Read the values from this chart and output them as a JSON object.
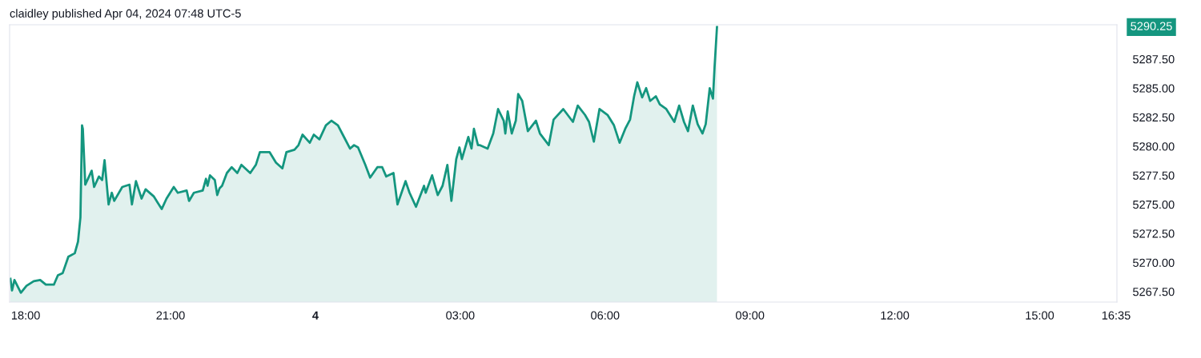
{
  "chart_data": {
    "type": "area",
    "title": "claidley published Apr 04, 2024 07:48 UTC-5",
    "x": [
      "2024-04-03T17:41",
      "2024-04-03T17:43",
      "2024-04-03T17:46",
      "2024-04-03T17:54",
      "2024-04-03T18:01",
      "2024-04-03T18:10",
      "2024-04-03T18:18",
      "2024-04-03T18:25",
      "2024-04-03T18:35",
      "2024-04-03T18:40",
      "2024-04-03T18:46",
      "2024-04-03T18:53",
      "2024-04-03T19:01",
      "2024-04-03T19:05",
      "2024-04-03T19:08",
      "2024-04-03T19:10",
      "2024-04-03T19:11",
      "2024-04-03T19:14",
      "2024-04-03T19:22",
      "2024-04-03T19:25",
      "2024-04-03T19:31",
      "2024-04-03T19:35",
      "2024-04-03T19:38",
      "2024-04-03T19:43",
      "2024-04-03T19:47",
      "2024-04-03T19:50",
      "2024-04-03T20:00",
      "2024-04-03T20:09",
      "2024-04-03T20:12",
      "2024-04-03T20:17",
      "2024-04-03T20:24",
      "2024-04-03T20:29",
      "2024-04-03T20:39",
      "2024-04-03T20:49",
      "2024-04-03T20:55",
      "2024-04-03T21:04",
      "2024-04-03T21:09",
      "2024-04-03T21:20",
      "2024-04-03T21:23",
      "2024-04-03T21:29",
      "2024-04-03T21:40",
      "2024-04-03T21:44",
      "2024-04-03T21:46",
      "2024-04-03T21:49",
      "2024-04-03T21:55",
      "2024-04-03T21:58",
      "2024-04-03T22:01",
      "2024-04-03T22:04",
      "2024-04-03T22:10",
      "2024-04-03T22:16",
      "2024-04-03T22:23",
      "2024-04-03T22:28",
      "2024-04-03T22:39",
      "2024-04-03T22:46",
      "2024-04-03T22:51",
      "2024-04-03T23:03",
      "2024-04-03T23:11",
      "2024-04-03T23:19",
      "2024-04-03T23:24",
      "2024-04-03T23:34",
      "2024-04-03T23:39",
      "2024-04-03T23:44",
      "2024-04-03T23:53",
      "2024-04-03T23:58",
      "2024-04-04T00:05",
      "2024-04-04T00:13",
      "2024-04-04T00:20",
      "2024-04-04T00:28",
      "2024-04-04T00:34",
      "2024-04-04T00:43",
      "2024-04-04T00:48",
      "2024-04-04T00:53",
      "2024-04-04T01:02",
      "2024-04-04T01:08",
      "2024-04-04T01:17",
      "2024-04-04T01:23",
      "2024-04-04T01:28",
      "2024-04-04T01:37",
      "2024-04-04T01:42",
      "2024-04-04T01:47",
      "2024-04-04T01:52",
      "2024-04-04T01:57",
      "2024-04-04T02:05",
      "2024-04-04T02:15",
      "2024-04-04T02:17",
      "2024-04-04T02:25",
      "2024-04-04T02:32",
      "2024-04-04T02:38",
      "2024-04-04T02:44",
      "2024-04-04T02:49",
      "2024-04-04T02:55",
      "2024-04-04T02:59",
      "2024-04-04T03:02",
      "2024-04-04T03:10",
      "2024-04-04T03:14",
      "2024-04-04T03:17",
      "2024-04-04T03:22",
      "2024-04-04T03:24",
      "2024-04-04T03:34",
      "2024-04-04T03:41",
      "2024-04-04T03:47",
      "2024-04-04T03:54",
      "2024-04-04T03:56",
      "2024-04-04T03:59",
      "2024-04-04T04:04",
      "2024-04-04T04:09",
      "2024-04-04T04:12",
      "2024-04-04T04:17",
      "2024-04-04T04:24",
      "2024-04-04T04:34",
      "2024-04-04T04:39",
      "2024-04-04T04:50",
      "2024-04-04T04:56",
      "2024-04-04T05:08",
      "2024-04-04T05:20",
      "2024-04-04T05:26",
      "2024-04-04T05:35",
      "2024-04-04T05:40",
      "2024-04-04T05:46",
      "2024-04-04T05:53",
      "2024-04-04T06:03",
      "2024-04-04T06:11",
      "2024-04-04T06:18",
      "2024-04-04T06:25",
      "2024-04-04T06:31",
      "2024-04-04T06:36",
      "2024-04-04T06:40",
      "2024-04-04T06:46",
      "2024-04-04T06:51",
      "2024-04-04T06:56",
      "2024-04-04T07:03",
      "2024-04-04T07:08",
      "2024-04-04T07:16",
      "2024-04-04T07:26",
      "2024-04-04T07:32",
      "2024-04-04T07:38",
      "2024-04-04T07:43",
      "2024-04-04T07:49",
      "2024-04-04T07:55",
      "2024-04-04T08:01",
      "2024-04-04T08:05",
      "2024-04-04T08:10",
      "2024-04-04T08:14",
      "2024-04-04T08:16",
      "2024-04-04T08:19"
    ],
    "series": [
      {
        "color": "#14967f",
        "values": [
          5268.6,
          5267.6,
          5268.5,
          5267.4,
          5268.0,
          5268.4,
          5268.5,
          5268.1,
          5268.1,
          5268.9,
          5269.1,
          5270.5,
          5270.8,
          5271.8,
          5273.9,
          5281.8,
          5281.5,
          5276.7,
          5277.9,
          5276.5,
          5277.4,
          5277.1,
          5278.8,
          5275.0,
          5276.0,
          5275.3,
          5276.5,
          5276.7,
          5275.0,
          5277.0,
          5275.5,
          5276.3,
          5275.7,
          5274.6,
          5275.5,
          5276.5,
          5276.0,
          5276.2,
          5275.3,
          5276.0,
          5276.2,
          5277.2,
          5276.6,
          5277.5,
          5277.1,
          5275.8,
          5276.4,
          5276.6,
          5277.7,
          5278.2,
          5277.7,
          5278.4,
          5277.7,
          5278.4,
          5279.5,
          5279.5,
          5278.6,
          5278.1,
          5279.5,
          5279.7,
          5280.1,
          5281.0,
          5280.3,
          5281.0,
          5280.6,
          5281.8,
          5282.2,
          5281.8,
          5281.0,
          5279.8,
          5280.1,
          5279.9,
          5278.4,
          5277.3,
          5278.2,
          5278.2,
          5277.4,
          5277.7,
          5275.0,
          5276.0,
          5277.0,
          5276.0,
          5274.8,
          5276.6,
          5276.0,
          5277.5,
          5275.8,
          5276.6,
          5278.4,
          5275.3,
          5278.9,
          5279.9,
          5278.9,
          5280.8,
          5279.8,
          5281.5,
          5280.1,
          5280.1,
          5279.8,
          5281.1,
          5283.2,
          5282.2,
          5281.1,
          5283.0,
          5281.1,
          5282.2,
          5284.5,
          5283.9,
          5281.3,
          5282.2,
          5281.1,
          5280.1,
          5282.3,
          5283.2,
          5282.1,
          5283.5,
          5282.7,
          5282.1,
          5280.4,
          5283.2,
          5282.7,
          5281.8,
          5280.3,
          5281.5,
          5282.3,
          5284.3,
          5285.5,
          5284.2,
          5285.0,
          5283.9,
          5284.3,
          5283.6,
          5283.2,
          5282.1,
          5283.5,
          5282.1,
          5281.3,
          5283.5,
          5281.9,
          5281.1,
          5281.9,
          5285.0,
          5284.1,
          5286.8,
          5290.25
        ]
      }
    ],
    "xlim": [
      "2024-04-03T17:40",
      "2024-04-04T16:36"
    ],
    "xticks": [
      {
        "value": "2024-04-03T18:00",
        "label": "18:00"
      },
      {
        "value": "2024-04-03T21:00",
        "label": "21:00"
      },
      {
        "value": "2024-04-04T00:00",
        "label": "4"
      },
      {
        "value": "2024-04-04T03:00",
        "label": "03:00"
      },
      {
        "value": "2024-04-04T06:00",
        "label": "06:00"
      },
      {
        "value": "2024-04-04T09:00",
        "label": "09:00"
      },
      {
        "value": "2024-04-04T12:00",
        "label": "12:00"
      },
      {
        "value": "2024-04-04T15:00",
        "label": "15:00"
      },
      {
        "value": "2024-04-04T16:35",
        "label": "16:35"
      }
    ],
    "ylim": [
      5266.6,
      5290.45
    ],
    "yticks": [
      {
        "value": 5267.5,
        "label": "5267.50"
      },
      {
        "value": 5270,
        "label": "5270.00"
      },
      {
        "value": 5272.5,
        "label": "5272.50"
      },
      {
        "value": 5275,
        "label": "5275.00"
      },
      {
        "value": 5277.5,
        "label": "5277.50"
      },
      {
        "value": 5280,
        "label": "5280.00"
      },
      {
        "value": 5282.5,
        "label": "5282.50"
      },
      {
        "value": 5285,
        "label": "5285.00"
      },
      {
        "value": 5287.5,
        "label": "5287.50"
      }
    ],
    "annotations": [
      "5290.25"
    ],
    "grid": false,
    "legend": false
  }
}
